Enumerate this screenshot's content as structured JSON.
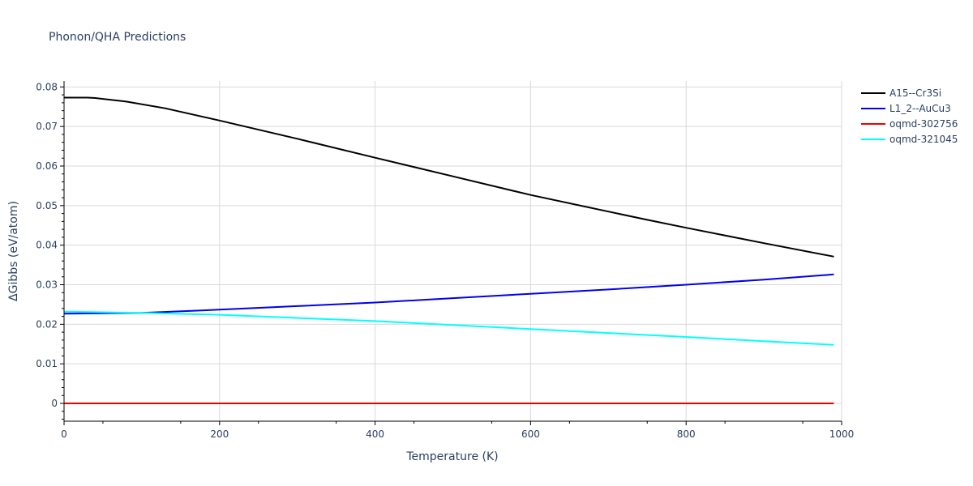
{
  "chart_data": {
    "type": "line",
    "title": "Phonon/QHA Predictions",
    "xlabel": "Temperature (K)",
    "ylabel": "ΔGibbs (eV/atom)",
    "xlim": [
      0,
      1000
    ],
    "ylim": [
      -0.0045,
      0.0815
    ],
    "xticks": [
      0,
      200,
      400,
      600,
      800,
      1000
    ],
    "xtick_labels": [
      "0",
      "200",
      "400",
      "600",
      "800",
      "1000"
    ],
    "yticks": [
      0,
      0.01,
      0.02,
      0.03,
      0.04,
      0.05,
      0.06,
      0.07,
      0.08
    ],
    "ytick_labels": [
      "0",
      "0.01",
      "0.02",
      "0.03",
      "0.04",
      "0.05",
      "0.06",
      "0.07",
      "0.08"
    ],
    "grid": true,
    "legend_position": "top-right",
    "series": [
      {
        "name": "A15--Cr3Si",
        "color": "#000000",
        "x": [
          0,
          30,
          40,
          80,
          130,
          200,
          300,
          400,
          500,
          600,
          700,
          750,
          800,
          900,
          990
        ],
        "y": [
          0.0773,
          0.0773,
          0.0772,
          0.0763,
          0.0746,
          0.0715,
          0.0669,
          0.0621,
          0.0574,
          0.0527,
          0.0485,
          0.0464,
          0.0444,
          0.0405,
          0.0371
        ]
      },
      {
        "name": "L1_2--AuCu3",
        "color": "#0000ee",
        "x": [
          0,
          100,
          200,
          300,
          400,
          500,
          600,
          700,
          800,
          900,
          990
        ],
        "y": [
          0.0227,
          0.0229,
          0.0237,
          0.0246,
          0.0255,
          0.0266,
          0.0277,
          0.0288,
          0.03,
          0.0313,
          0.0326
        ]
      },
      {
        "name": "oqmd-302756",
        "color": "#ee0000",
        "x": [
          0,
          990
        ],
        "y": [
          0.0,
          0.0
        ]
      },
      {
        "name": "oqmd-321045",
        "color": "#00ffff",
        "x": [
          0,
          100,
          200,
          300,
          400,
          500,
          600,
          700,
          800,
          900,
          990
        ],
        "y": [
          0.0232,
          0.0229,
          0.0224,
          0.0216,
          0.0208,
          0.0198,
          0.0188,
          0.0178,
          0.0168,
          0.0157,
          0.0148
        ]
      }
    ]
  }
}
